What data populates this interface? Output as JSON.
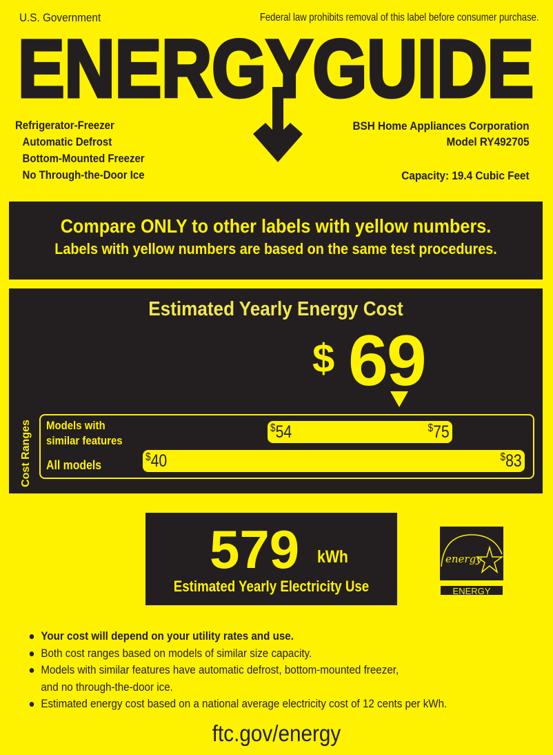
{
  "header": {
    "government": "U.S. Government",
    "law_notice": "Federal law prohibits removal of this label before consumer purchase.",
    "logo_text": "ENERGYGUIDE"
  },
  "product": {
    "type": "Refrigerator-Freezer",
    "features": [
      "Automatic Defrost",
      "Bottom-Mounted Freezer",
      "No Through-the-Door Ice"
    ],
    "manufacturer": "BSH Home Appliances Corporation",
    "model": "Model RY492705",
    "capacity": "Capacity: 19.4 Cubic Feet"
  },
  "compare": {
    "line1": "Compare ONLY to other labels with yellow numbers.",
    "line2": "Labels with yellow numbers are based on the same test procedures."
  },
  "cost": {
    "title": "Estimated Yearly Energy Cost",
    "currency": "$",
    "value": "69",
    "ranges_label": "Cost Ranges",
    "similar": {
      "label": "Models with similar features",
      "low": "54",
      "high": "75"
    },
    "all": {
      "label": "All models",
      "low": "40",
      "high": "83"
    }
  },
  "electricity": {
    "value": "579",
    "unit": "kWh",
    "label": "Estimated Yearly Electricity Use"
  },
  "energy_star": {
    "logo_text": "energy",
    "label": "ENERGY STAR"
  },
  "notes": [
    "Your cost will depend on your utility rates and use.",
    "Both cost ranges based on models of similar size capacity.",
    "Models with similar features have automatic defrost, bottom-mounted freezer, and no through-the-door ice.",
    "Estimated energy cost based on a national average electricity cost of 12 cents per kWh."
  ],
  "footer": {
    "url": "ftc.gov/energy"
  },
  "colors": {
    "label_yellow": "#fff200",
    "dark": "#231f20"
  }
}
